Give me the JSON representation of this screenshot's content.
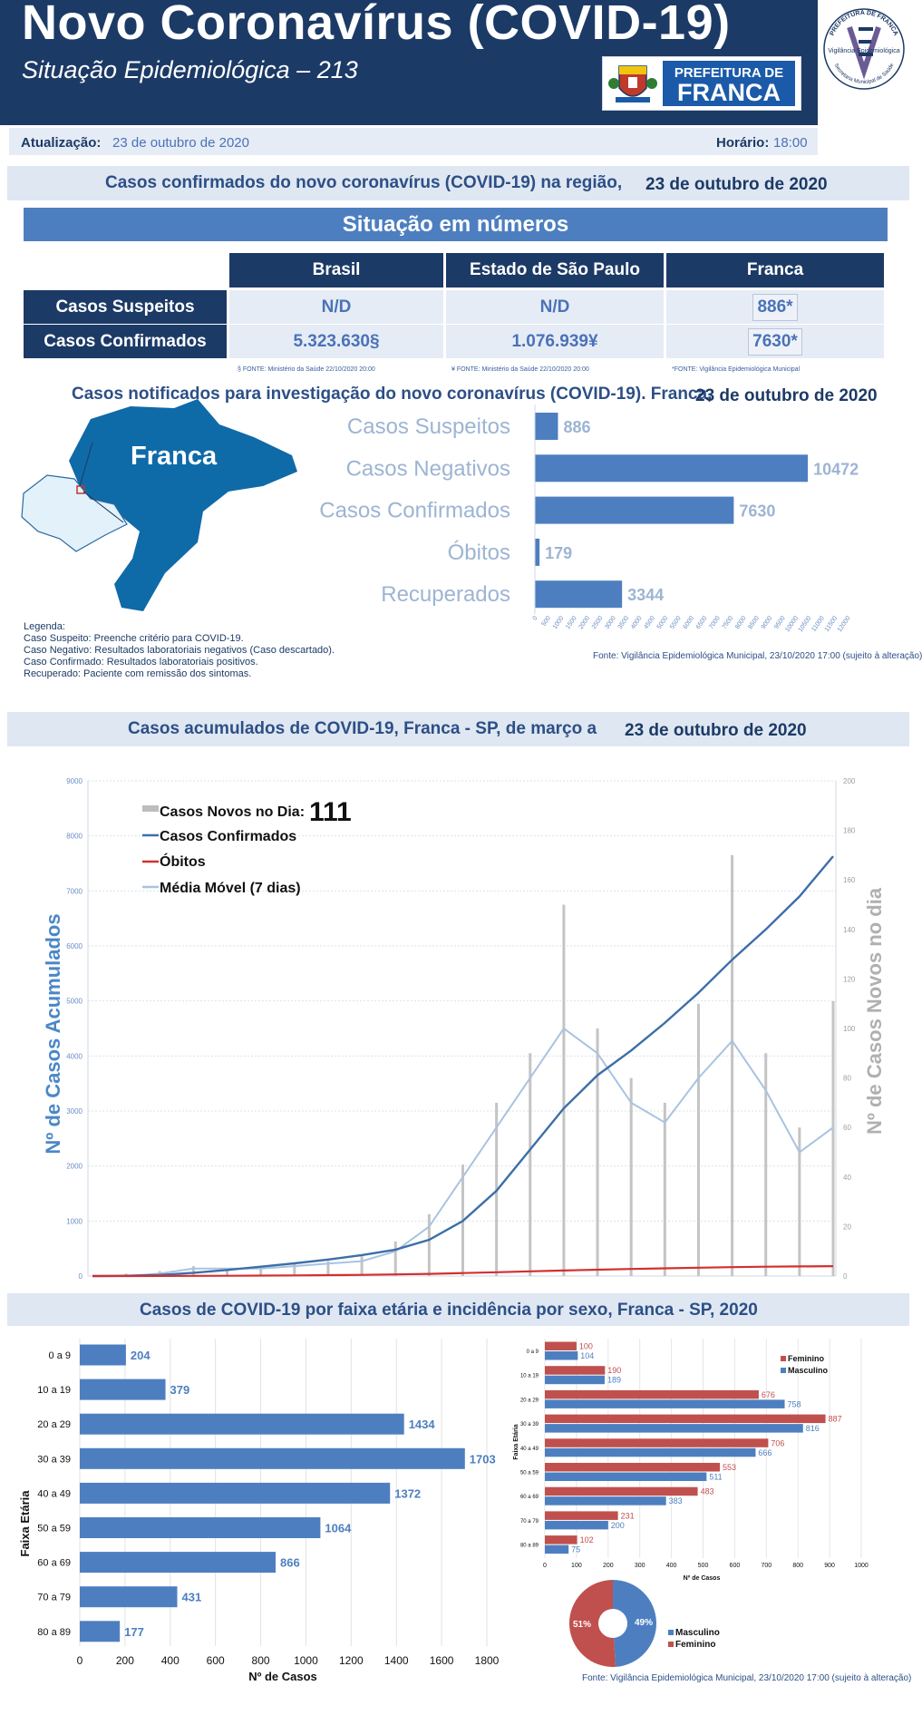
{
  "header": {
    "title": "Novo Coronavírus (COVID-19)",
    "subtitle": "Situação Epidemiológica – 213",
    "pref_logo_line1": "PREFEITURA DE",
    "pref_logo_line2": "FRANCA",
    "ve_logo_top": "PREFEITURA DE FRANCA",
    "ve_logo_mid": "Vigilância Epidemiológica",
    "ve_logo_bottom": "Secretaria Municipal de Saúde"
  },
  "update": {
    "label": "Atualização:",
    "date": "23 de outubro de 2020",
    "time_label": "Horário:",
    "time": "18:00"
  },
  "region": {
    "title": "Casos confirmados do novo coronavírus (COVID-19) na região,",
    "date": "23 de outubro de 2020"
  },
  "situation": {
    "title": "Situação em números",
    "columns": [
      "Brasil",
      "Estado de São Paulo",
      "Franca"
    ],
    "rows": [
      {
        "label": "Casos Suspeitos",
        "values": [
          "N/D",
          "N/D",
          "886*"
        ]
      },
      {
        "label": "Casos Confirmados",
        "values": [
          "5.323.630§",
          "1.076.939¥",
          "7630*"
        ]
      }
    ],
    "sources": [
      "§ FONTE: Ministério da Saúde 22/10/2020 20:00",
      "¥ FONTE: Ministério da Saúde 22/10/2020 20:00",
      "*FONTE: Vigilância Epidemiológica Municipal"
    ]
  },
  "notified": {
    "title": "Casos notificados para investigação do novo coronavírus (COVID-19). Franca,",
    "date": "23 de outubro de 2020",
    "map_label": "Franca",
    "legend": [
      "Legenda:",
      "Caso Suspeito: Preenche critério para COVID-19.",
      "Caso Negativo: Resultados laboratoriais negativos (Caso descartado).",
      "Caso Confirmado: Resultados laboratoriais positivos.",
      "Recuperado: Paciente com remissão dos sintomas."
    ],
    "source": "Fonte: Vigilância Epidemiológica Municipal, 23/10/2020 17:00  (sujeito à alteração)"
  },
  "cumulative": {
    "title": "Casos acumulados de COVID-19, Franca - SP, de março a",
    "date": "23 de outubro de 2020",
    "legend_new": "Casos Novos no Dia:",
    "new_today": "111",
    "legend_confirmed": "Casos Confirmados",
    "legend_deaths": "Óbitos",
    "legend_avg": "Média Móvel (7 dias)",
    "y_left_label": "Nº de Casos Acumulados",
    "y_right_label": "Nº de Casos Novos no dia"
  },
  "age_section": {
    "title": "Casos de COVID-19 por faixa etária e incidência por sexo, Franca - SP, 2020",
    "source": "Fonte: Vigilância Epidemiológica Municipal, 23/10/2020 17:00 (sujeito à alteração)"
  },
  "colors": {
    "navy": "#1c3a66",
    "bar_blue": "#4d7fc0",
    "female_red": "#c0504d",
    "light_bg": "#e6ecf5"
  },
  "chart_data": [
    {
      "type": "bar",
      "orientation": "horizontal",
      "categories": [
        "Casos Suspeitos",
        "Casos Negativos",
        "Casos Confirmados",
        "Óbitos",
        "Recuperados"
      ],
      "values": [
        886,
        10472,
        7630,
        179,
        3344
      ],
      "xlim": [
        0,
        12000
      ],
      "xticks": [
        0,
        500,
        1000,
        1500,
        2000,
        2500,
        3000,
        3500,
        4000,
        4500,
        5000,
        5500,
        6000,
        6500,
        7000,
        7500,
        8000,
        8500,
        9000,
        9500,
        10000,
        10500,
        11000,
        11500,
        12000
      ]
    },
    {
      "type": "line",
      "y_left_lim": [
        0,
        9000
      ],
      "y_left_ticks": [
        0,
        1000,
        2000,
        3000,
        4000,
        5000,
        6000,
        7000,
        8000,
        9000
      ],
      "y_right_lim": [
        0,
        200
      ],
      "y_right_ticks": [
        0,
        20,
        40,
        60,
        80,
        100,
        120,
        140,
        160,
        180,
        200
      ],
      "confirmed_cumulative": [
        0,
        5,
        20,
        60,
        110,
        170,
        230,
        300,
        380,
        480,
        660,
        1000,
        1550,
        2300,
        3050,
        3650,
        4100,
        4600,
        5150,
        5750,
        6300,
        6900,
        7630
      ],
      "deaths_cumulative": [
        0,
        0,
        1,
        3,
        5,
        8,
        12,
        16,
        22,
        30,
        40,
        55,
        70,
        85,
        100,
        115,
        128,
        140,
        152,
        162,
        170,
        175,
        179
      ],
      "moving_avg": [
        0,
        0,
        1,
        3,
        3,
        3,
        4,
        5,
        6,
        10,
        20,
        40,
        60,
        80,
        100,
        90,
        70,
        62,
        80,
        95,
        75,
        50,
        60
      ],
      "new_cases_daily": [
        0,
        1,
        2,
        4,
        3,
        3,
        5,
        6,
        8,
        14,
        25,
        45,
        70,
        90,
        150,
        100,
        80,
        70,
        110,
        170,
        90,
        60,
        111
      ],
      "grid": true
    },
    {
      "type": "bar",
      "orientation": "horizontal",
      "ylabel": "Faixa Etária",
      "xlabel": "Nº de Casos",
      "categories": [
        "0 a 9",
        "10 a 19",
        "20 a 29",
        "30 a 39",
        "40 a 49",
        "50 a 59",
        "60 a 69",
        "70 a 79",
        "80 a 89"
      ],
      "category_labels": [
        "0 a 9",
        "10 a 19",
        "20 a 29",
        "30 a 39",
        "40 a 49",
        "50 a 59",
        "60  a 69",
        "70 a 79",
        "80 a 89"
      ],
      "values": [
        204,
        379,
        1434,
        1703,
        1372,
        1064,
        866,
        431,
        177
      ],
      "xlim": [
        0,
        1800
      ],
      "xticks": [
        0,
        200,
        400,
        600,
        800,
        1000,
        1200,
        1400,
        1600,
        1800
      ]
    },
    {
      "type": "bar",
      "orientation": "horizontal",
      "ylabel": "Faixa Etária",
      "xlabel": "Nº de Casos",
      "categories": [
        "0 a 9",
        "10 a 19",
        "20 a 29",
        "30 a 39",
        "40 a 49",
        "50 a 59",
        "60 a 69",
        "70 a 79",
        "80 a 89"
      ],
      "category_labels": [
        "0 a 9",
        "10 a 19",
        "20 a 29",
        "30 a 39",
        "40 a 49",
        "50 a 59",
        "60  a 69",
        "70 a 79",
        "80 a 89"
      ],
      "series": [
        {
          "name": "Feminino",
          "values": [
            100,
            190,
            676,
            887,
            706,
            553,
            483,
            231,
            102
          ],
          "color": "#c0504d"
        },
        {
          "name": "Masculino",
          "values": [
            104,
            189,
            758,
            816,
            666,
            511,
            383,
            200,
            75
          ],
          "color": "#4d7fc0"
        }
      ],
      "xlim": [
        0,
        1000
      ],
      "xticks": [
        0,
        100,
        200,
        300,
        400,
        500,
        600,
        700,
        800,
        900,
        1000
      ],
      "legend": "top-right"
    },
    {
      "type": "pie",
      "categories": [
        "Masculino",
        "Feminino"
      ],
      "values": [
        49,
        51
      ],
      "labels": [
        "49%",
        "51%"
      ],
      "colors": [
        "#4d7fc0",
        "#c0504d"
      ]
    }
  ]
}
